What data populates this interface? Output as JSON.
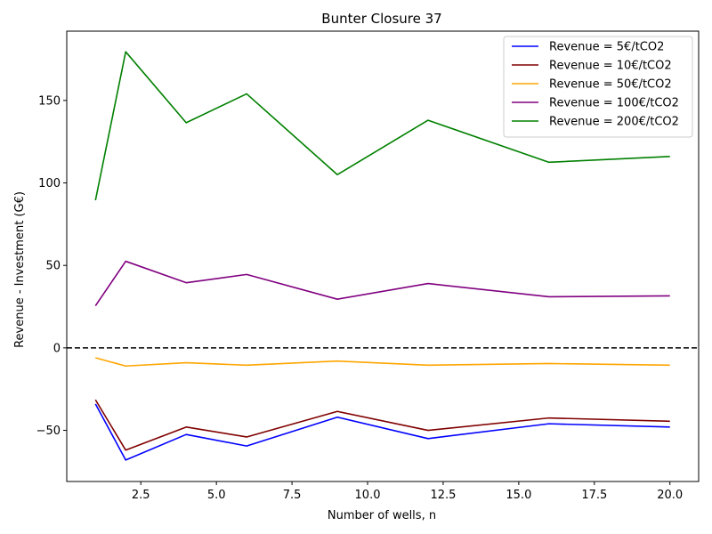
{
  "chart_data": {
    "type": "line",
    "title": "Bunter Closure 37",
    "xlabel": "Number of wells, n",
    "ylabel": "Revenue - Investment (G€)",
    "xlim": [
      0.05,
      20.95
    ],
    "ylim": [
      -81,
      192
    ],
    "xticks": [
      2.5,
      5.0,
      7.5,
      10.0,
      12.5,
      15.0,
      17.5,
      20.0
    ],
    "xtick_labels": [
      "2.5",
      "5.0",
      "7.5",
      "10.0",
      "12.5",
      "15.0",
      "17.5",
      "20.0"
    ],
    "yticks": [
      -50,
      0,
      50,
      100,
      150
    ],
    "ytick_labels": [
      "−50",
      "0",
      "50",
      "100",
      "150"
    ],
    "x": [
      1,
      2,
      4,
      6,
      9,
      12,
      16,
      20
    ],
    "series": [
      {
        "name": "Revenue = 5€/tCO2",
        "color": "#0000ff",
        "values": [
          -34,
          -68,
          -52.5,
          -59.5,
          -42,
          -55,
          -46,
          -48
        ]
      },
      {
        "name": "Revenue = 10€/tCO2",
        "color": "#800000",
        "values": [
          -31.5,
          -62,
          -48,
          -54,
          -38.5,
          -50,
          -42.5,
          -44.5
        ]
      },
      {
        "name": "Revenue = 50€/tCO2",
        "color": "#ffa500",
        "values": [
          -6,
          -11,
          -9,
          -10.5,
          -8,
          -10.5,
          -9.5,
          -10.5
        ]
      },
      {
        "name": "Revenue = 100€/tCO2",
        "color": "#800080",
        "values": [
          25.5,
          52.5,
          39.5,
          44.5,
          29.5,
          39,
          31,
          31.5
        ]
      },
      {
        "name": "Revenue = 200€/tCO2",
        "color": "#008000",
        "values": [
          89.5,
          179.5,
          136.5,
          154,
          105,
          138,
          112.5,
          116
        ]
      }
    ],
    "reference_line": {
      "y": 0,
      "style": "dashed",
      "color": "#000000"
    },
    "grid": false,
    "legend_position": "top-right"
  }
}
